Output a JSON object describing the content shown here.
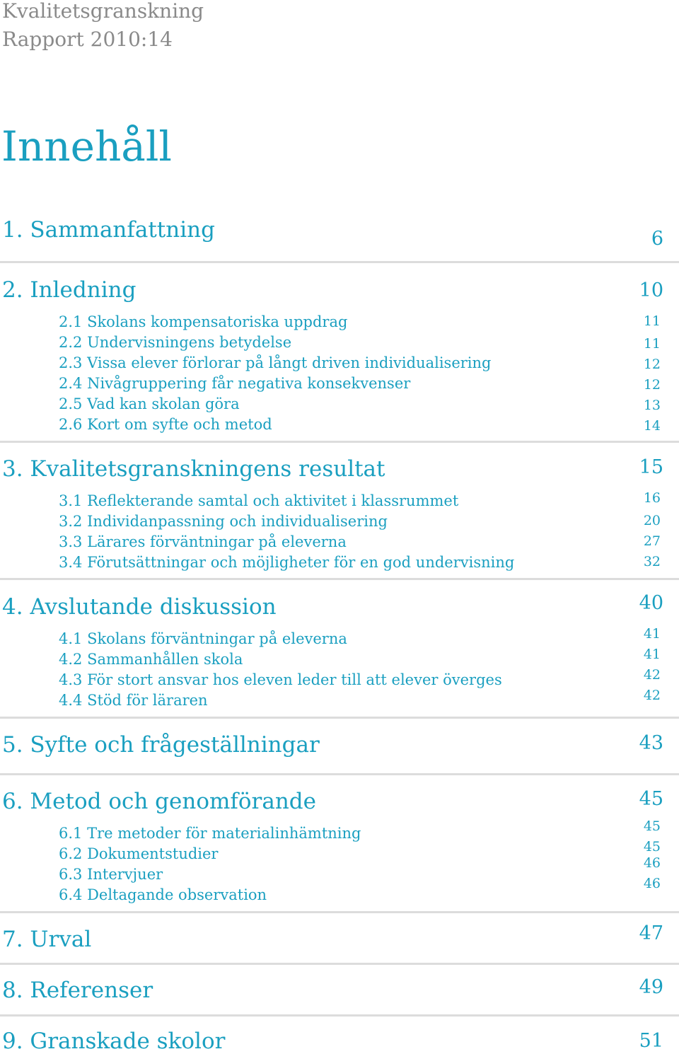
{
  "header": {
    "line1": "Kvalitetsgranskning",
    "line2": "Rapport 2010:14"
  },
  "title": "Innehåll",
  "sections": [
    {
      "label": "1. Sammanfattning",
      "page": "6",
      "items": []
    },
    {
      "label": "2. Inledning",
      "page": "10",
      "items": [
        {
          "label": "2.1 Skolans kompensatoriska uppdrag",
          "page": "11"
        },
        {
          "label": "2.2 Undervisningens betydelse",
          "page": "11"
        },
        {
          "label": "2.3 Vissa elever förlorar på långt driven individualisering",
          "page": "12"
        },
        {
          "label": "2.4 Nivågruppering får negativa konsekvenser",
          "page": "12"
        },
        {
          "label": "2.5 Vad kan skolan göra",
          "page": "13"
        },
        {
          "label": "2.6 Kort om syfte och metod",
          "page": "14"
        }
      ]
    },
    {
      "label": "3. Kvalitetsgranskningens resultat",
      "page": "15",
      "items": [
        {
          "label": "3.1 Reflekterande samtal och aktivitet i klassrummet",
          "page": "16"
        },
        {
          "label": "3.2 Individanpassning och individualisering",
          "page": "20"
        },
        {
          "label": "3.3 Lärares förväntningar på eleverna",
          "page": "27"
        },
        {
          "label": "3.4 Förutsättningar och möjligheter för en god undervisning",
          "page": "32"
        }
      ]
    },
    {
      "label": "4. Avslutande diskussion",
      "page": "40",
      "items": [
        {
          "label": "4.1 Skolans förväntningar på eleverna",
          "page": "41"
        },
        {
          "label": "4.2 Sammanhållen skola",
          "page": "41"
        },
        {
          "label": "4.3 För stort ansvar hos eleven leder till att elever överges",
          "page": "42"
        },
        {
          "label": "4.4 Stöd för läraren",
          "page": "42"
        }
      ]
    },
    {
      "label": "5. Syfte och frågeställningar",
      "page": "43",
      "items": []
    },
    {
      "label": "6. Metod och genomförande",
      "page": "45",
      "items": [
        {
          "label": "6.1 Tre metoder för materialinhämtning",
          "page": "45"
        },
        {
          "label": "6.2 Dokumentstudier",
          "page": "45"
        },
        {
          "label": "6.3 Intervjuer",
          "page": "46"
        },
        {
          "label": "6.4 Deltagande observation",
          "page": "46"
        }
      ]
    },
    {
      "label": "7. Urval",
      "page": "47",
      "items": []
    },
    {
      "label": "8. Referenser",
      "page": "49",
      "items": []
    },
    {
      "label": "9. Granskade skolor",
      "page": "51",
      "items": []
    }
  ],
  "colors": {
    "accent": "#1a9fc0",
    "header_gray": "#8a8a8a",
    "rule_gray": "#dcdcdc"
  }
}
